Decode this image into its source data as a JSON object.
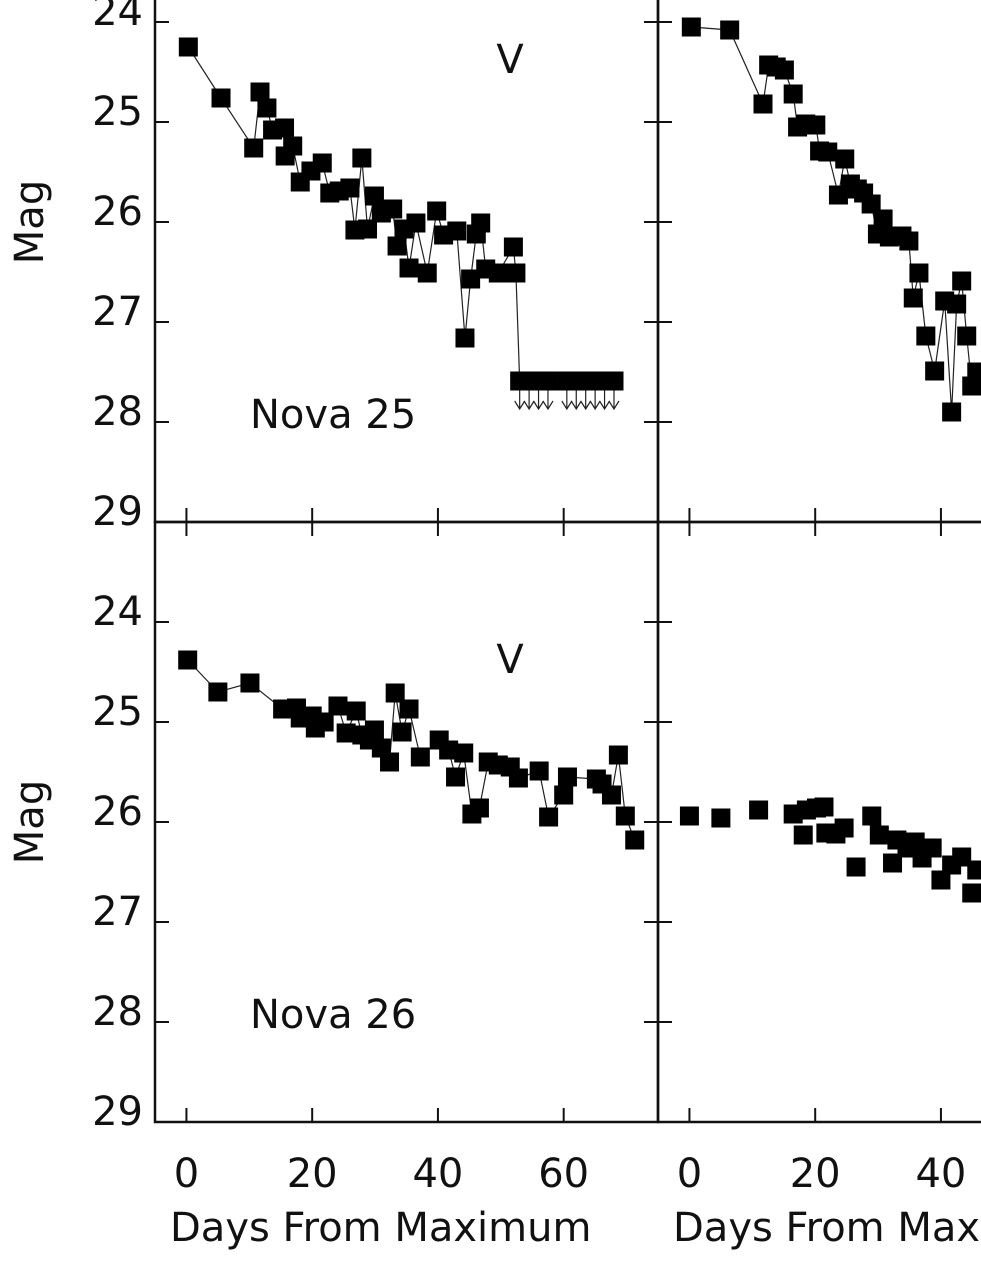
{
  "chart_data": [
    {
      "type": "line",
      "band_label": "V",
      "object_label": "Nova 25",
      "xlim": [
        -5,
        75
      ],
      "xticks": [
        0,
        20,
        40,
        60
      ],
      "ylim": [
        29,
        23
      ],
      "yticks": [
        24,
        25,
        26,
        27,
        28,
        29
      ],
      "ylabel": "Mag",
      "color": "#000000",
      "x": [
        0.3,
        5.5,
        10.7,
        11.7,
        12.8,
        13.7,
        15.6,
        15.7,
        16.9,
        18.1,
        19.8,
        21.6,
        22.8,
        24.3,
        26,
        26.8,
        27.9,
        28.8,
        29.9,
        31,
        32.8,
        33.5,
        34.6,
        35.4,
        36.5,
        38.3,
        39.8,
        40.9,
        43,
        44.3,
        45.2,
        46.1,
        46.8,
        47.6,
        49.6,
        52,
        52.4
      ],
      "values": [
        24.25,
        24.76,
        25.26,
        24.7,
        24.86,
        25.08,
        25.06,
        25.34,
        25.24,
        25.6,
        25.49,
        25.41,
        25.71,
        25.69,
        25.66,
        26.08,
        25.36,
        26.07,
        25.74,
        25.91,
        25.87,
        26.24,
        26.07,
        26.46,
        26.01,
        26.51,
        25.89,
        26.13,
        26.09,
        27.16,
        26.57,
        26.12,
        26.01,
        26.47,
        26.51,
        26.25,
        26.51
      ],
      "limit_x": [
        53,
        54.5,
        56,
        57.5,
        60.5,
        62,
        63.5,
        65,
        66.5,
        68
      ],
      "limit_values": [
        27.59,
        27.59,
        27.59,
        27.59,
        27.59,
        27.59,
        27.59,
        27.59,
        27.59,
        27.59
      ]
    },
    {
      "type": "line",
      "xlim": [
        -5,
        75
      ],
      "xticks": [
        0,
        20,
        40
      ],
      "ylim": [
        29,
        23
      ],
      "yticks": [
        24,
        25,
        26,
        27,
        28,
        29
      ],
      "color": "#000000",
      "x": [
        0.3,
        6.4,
        11.7,
        12.6,
        13.8,
        15.1,
        16.5,
        17.2,
        18.5,
        20.1,
        20.7,
        22,
        23.7,
        24.7,
        25.6,
        26.7,
        27.7,
        28.9,
        29.9,
        30.8,
        31.8,
        33.8,
        34.9,
        35.6,
        36.5,
        37.6,
        39,
        40.6,
        41.7,
        42.5,
        43.3,
        44.1,
        44.9,
        45.7
      ],
      "values": [
        24.05,
        24.08,
        24.82,
        24.43,
        24.45,
        24.48,
        24.72,
        25.05,
        25.02,
        25.03,
        25.29,
        25.3,
        25.73,
        25.37,
        25.62,
        25.67,
        25.71,
        25.82,
        26.12,
        25.97,
        26.15,
        26.14,
        26.19,
        26.76,
        26.51,
        27.14,
        27.49,
        26.79,
        27.9,
        26.82,
        26.59,
        27.14,
        27.64,
        27.5
      ]
    },
    {
      "type": "line",
      "band_label": "V",
      "object_label": "Nova 26",
      "xlim": [
        -5,
        75
      ],
      "xticks": [
        0,
        20,
        40,
        60
      ],
      "ylim": [
        29,
        23
      ],
      "yticks": [
        24,
        25,
        26,
        27,
        28,
        29
      ],
      "ylabel": "Mag",
      "xlabel": "Days From Maximum",
      "color": "#000000",
      "x": [
        0.2,
        5,
        10.1,
        15.3,
        17.5,
        18.1,
        20,
        20.5,
        21.9,
        24.1,
        25.4,
        27,
        27.9,
        29.1,
        29.9,
        31,
        32.3,
        33.2,
        34.3,
        35.4,
        37.2,
        40.2,
        41.7,
        42.8,
        44.1,
        45.4,
        46.6,
        48,
        49.6,
        51.5,
        52.8,
        56.1,
        57.6,
        60,
        60.6,
        65.2,
        66.1,
        67.6,
        68.7,
        69.8,
        71.3
      ],
      "values": [
        24.38,
        24.7,
        24.61,
        24.87,
        24.86,
        24.96,
        24.94,
        25.06,
        25,
        24.84,
        25.11,
        24.89,
        25.13,
        25.18,
        25.08,
        25.26,
        25.4,
        24.71,
        25.1,
        24.87,
        25.35,
        25.18,
        25.28,
        25.55,
        25.31,
        25.92,
        25.86,
        25.4,
        25.43,
        25.45,
        25.56,
        25.49,
        25.95,
        25.73,
        25.55,
        25.57,
        25.62,
        25.73,
        25.33,
        25.94,
        26.18
      ]
    },
    {
      "type": "scatter",
      "xlim": [
        -5,
        75
      ],
      "xticks": [
        0,
        20,
        40
      ],
      "ylim": [
        29,
        23
      ],
      "yticks": [
        24,
        25,
        26,
        27,
        28,
        29
      ],
      "xlabel": "Days From Maximum",
      "color": "#000000",
      "x": [
        0,
        5,
        11,
        16.5,
        18.1,
        18.6,
        20.2,
        21.4,
        21.7,
        23.3,
        24.6,
        26.5,
        29,
        30.2,
        32.3,
        33,
        34.6,
        35.9,
        37,
        38.6,
        40,
        41.7,
        43.3,
        44.9,
        45.7
      ],
      "values": [
        25.94,
        25.96,
        25.88,
        25.92,
        26.13,
        25.88,
        25.86,
        25.85,
        26.11,
        26.12,
        26.06,
        26.45,
        25.94,
        26.13,
        26.41,
        26.18,
        26.26,
        26.2,
        26.36,
        26.26,
        26.58,
        26.43,
        26.35,
        26.71,
        26.48
      ]
    }
  ]
}
